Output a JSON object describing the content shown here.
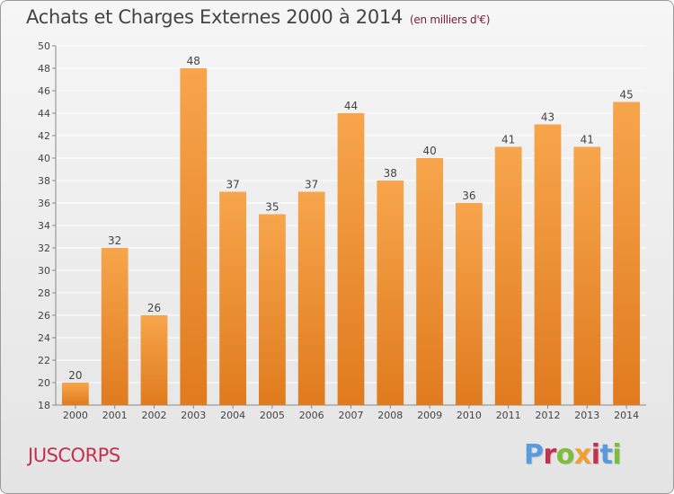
{
  "header": {
    "title": "Achats et Charges Externes 2000 à 2014",
    "subtitle": "(en milliers d'€)"
  },
  "footer": {
    "commune": "JUSCORPS",
    "logo_text": "Proxiti"
  },
  "colors": {
    "bar_light": "#f7a54c",
    "bar_dark": "#e07b1e",
    "grid": "#ffffff",
    "axis": "#888888",
    "logo": [
      "#5a9be0",
      "#c4314e",
      "#7cbd3a",
      "#f0a030",
      "#c4314e",
      "#5a9be0",
      "#7cbd3a"
    ]
  },
  "chart_data": {
    "type": "bar",
    "title": "Achats et Charges Externes 2000 à 2014",
    "subtitle": "(en milliers d'€)",
    "xlabel": "",
    "ylabel": "",
    "categories": [
      "2000",
      "2001",
      "2002",
      "2003",
      "2004",
      "2005",
      "2006",
      "2007",
      "2008",
      "2009",
      "2010",
      "2011",
      "2012",
      "2013",
      "2014"
    ],
    "values": [
      20,
      32,
      26,
      48,
      37,
      35,
      37,
      44,
      38,
      40,
      36,
      41,
      43,
      41,
      45
    ],
    "ylim": [
      18,
      50
    ],
    "yticks": [
      18,
      20,
      22,
      24,
      26,
      28,
      30,
      32,
      34,
      36,
      38,
      40,
      42,
      44,
      46,
      48,
      50
    ],
    "grid": true,
    "legend": "none",
    "data_labels": true
  }
}
